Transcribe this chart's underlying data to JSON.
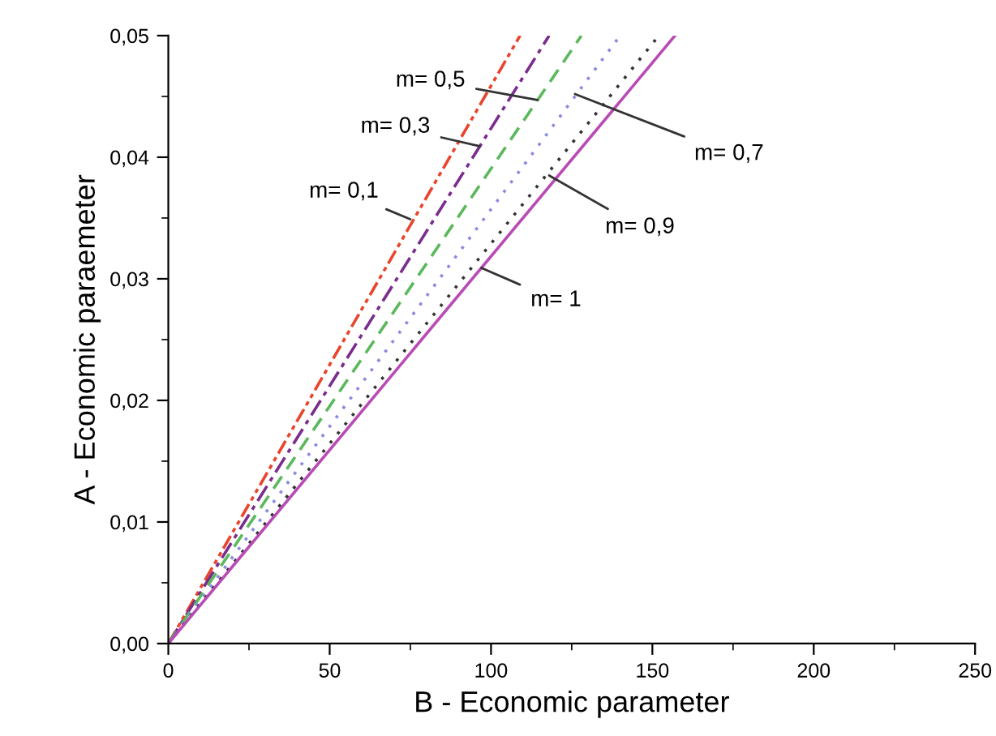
{
  "chart_data": {
    "type": "line",
    "xlabel": "B - Economic parameter",
    "ylabel": "A - Economic paraemeter",
    "xlim": [
      0,
      250
    ],
    "xticks": [
      0,
      50,
      100,
      150,
      200,
      250
    ],
    "ylim": [
      0,
      0.05
    ],
    "yticks": [
      {
        "value": 0,
        "label": "0,00"
      },
      {
        "value": 0.01,
        "label": "0,01"
      },
      {
        "value": 0.02,
        "label": "0,02"
      },
      {
        "value": 0.03,
        "label": "0,03"
      },
      {
        "value": 0.04,
        "label": "0,04"
      },
      {
        "value": 0.05,
        "label": "0,05"
      }
    ],
    "grid": false,
    "legend": false,
    "marker": "none",
    "series": [
      {
        "x": [
          0,
          109
        ],
        "values": [
          0,
          0.05
        ],
        "color": "#e8452c",
        "line_style": "dashdotdot"
      },
      {
        "x": [
          0,
          118
        ],
        "values": [
          0,
          0.05
        ],
        "color": "#7b2d8e",
        "line_style": "dashdot"
      },
      {
        "x": [
          0,
          128
        ],
        "values": [
          0,
          0.05
        ],
        "color": "#5cb85c",
        "line_style": "dashed"
      },
      {
        "x": [
          0,
          140
        ],
        "values": [
          0,
          0.05
        ],
        "color": "#8a8ae0",
        "line_style": "dotted"
      },
      {
        "x": [
          0,
          152
        ],
        "values": [
          0,
          0.05
        ],
        "color": "#333333",
        "line_style": "dotted"
      },
      {
        "x": [
          0,
          157
        ],
        "values": [
          0,
          0.05
        ],
        "color": "#b94bb5",
        "line_style": "solid"
      }
    ],
    "annotations": [
      {
        "text": "m= 0,5",
        "x": 114.4,
        "y": 0.0447
      },
      {
        "text": "m= 0,3",
        "x": 96.5,
        "y": 0.0409
      },
      {
        "text": "m= 0,1",
        "x": 75,
        "y": 0.0349
      },
      {
        "text": "m= 0,7",
        "x": 126,
        "y": 0.0452
      },
      {
        "text": "m= 0,9",
        "x": 118,
        "y": 0.0385
      },
      {
        "text": "m= 1",
        "x": 97,
        "y": 0.0309
      }
    ]
  }
}
